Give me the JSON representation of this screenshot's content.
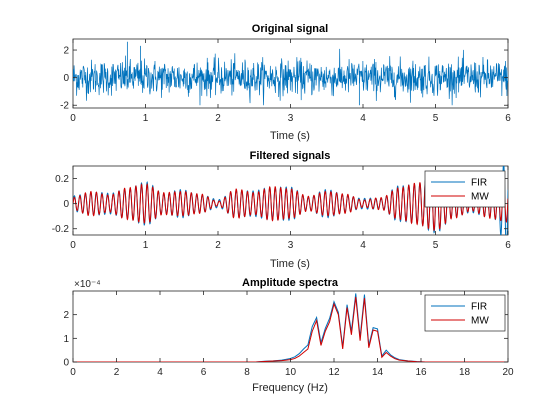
{
  "chart_data": [
    {
      "type": "line",
      "title": "Original signal",
      "xlabel": "Time (s)",
      "ylabel": "",
      "xlim": [
        0,
        6
      ],
      "ylim": [
        -2.2,
        2.8
      ],
      "xticks": [
        "0",
        "1",
        "2",
        "3",
        "4",
        "5",
        "6"
      ],
      "yticks": [
        "-2",
        "0",
        "2"
      ],
      "grid": false,
      "legend": null,
      "series": [
        {
          "color": "#0072BD",
          "description_values": "broadband noise, approx. zero mean, amplitude mostly within ±1.5, peaks near ±2.5",
          "x_range": [
            0,
            6
          ],
          "amplitude_typical": 0.85,
          "peak_max": 2.6,
          "peak_min": -2.0
        }
      ]
    },
    {
      "type": "line",
      "title": "Filtered signals",
      "xlabel": "Time (s)",
      "ylabel": "",
      "xlim": [
        0,
        6
      ],
      "ylim": [
        -0.25,
        0.3
      ],
      "xticks": [
        "0",
        "1",
        "2",
        "3",
        "4",
        "5",
        "6"
      ],
      "yticks": [
        "-0.2",
        "0",
        "0.2"
      ],
      "grid": false,
      "legend": "top-right",
      "center_freq_hz": 13,
      "envelope_points": {
        "t": [
          0,
          0.25,
          0.5,
          0.75,
          1.0,
          1.25,
          1.5,
          1.75,
          2.0,
          2.25,
          2.5,
          2.75,
          3.0,
          3.25,
          3.5,
          3.75,
          4.0,
          4.25,
          4.5,
          4.75,
          5.0,
          5.25,
          5.5,
          5.75,
          6.0
        ],
        "amp": [
          0.05,
          0.1,
          0.07,
          0.13,
          0.16,
          0.09,
          0.1,
          0.08,
          0.02,
          0.12,
          0.09,
          0.14,
          0.12,
          0.06,
          0.1,
          0.08,
          0.03,
          0.05,
          0.13,
          0.17,
          0.22,
          0.12,
          0.06,
          0.12,
          0.15
        ]
      },
      "series": [
        {
          "name": "FIR",
          "color": "#0072BD"
        },
        {
          "name": "MW",
          "color": "#D00000"
        }
      ]
    },
    {
      "type": "line",
      "title": "Amplitude spectra",
      "xlabel": "Frequency (Hz)",
      "ylabel": "",
      "exponent_label": "×10⁻⁴",
      "xlim": [
        0,
        20
      ],
      "ylim": [
        0,
        3
      ],
      "xticks": [
        "0",
        "2",
        "4",
        "6",
        "8",
        "10",
        "12",
        "14",
        "16",
        "18",
        "20"
      ],
      "yticks": [
        "0",
        "1",
        "2"
      ],
      "grid": false,
      "legend": "top-right",
      "series": [
        {
          "name": "FIR",
          "color": "#0072BD",
          "x": [
            0,
            8.4,
            8.8,
            9.2,
            9.6,
            10.0,
            10.2,
            10.4,
            10.6,
            10.8,
            11.0,
            11.2,
            11.4,
            11.6,
            11.8,
            12.0,
            12.2,
            12.4,
            12.6,
            12.8,
            13.0,
            13.2,
            13.4,
            13.6,
            13.8,
            14.0,
            14.2,
            14.4,
            14.6,
            14.8,
            15.0,
            15.4,
            15.8,
            16.2,
            20
          ],
          "y": [
            0,
            0,
            0.03,
            0.05,
            0.08,
            0.15,
            0.22,
            0.35,
            0.55,
            0.72,
            1.5,
            1.88,
            0.82,
            1.42,
            1.85,
            2.55,
            2.1,
            0.65,
            2.42,
            1.3,
            2.9,
            1.05,
            2.85,
            0.7,
            1.45,
            1.4,
            0.25,
            0.5,
            0.3,
            0.18,
            0.1,
            0.05,
            0.02,
            0,
            0
          ]
        },
        {
          "name": "MW",
          "color": "#D00000",
          "x": [
            0,
            8.4,
            8.8,
            9.2,
            9.6,
            10.0,
            10.2,
            10.4,
            10.6,
            10.8,
            11.0,
            11.2,
            11.4,
            11.6,
            11.8,
            12.0,
            12.2,
            12.4,
            12.6,
            12.8,
            13.0,
            13.2,
            13.4,
            13.6,
            13.8,
            14.0,
            14.2,
            14.4,
            14.6,
            14.8,
            15.0,
            15.4,
            15.8,
            16.2,
            20
          ],
          "y": [
            0,
            0,
            0.02,
            0.04,
            0.06,
            0.1,
            0.15,
            0.25,
            0.4,
            0.55,
            1.3,
            1.75,
            0.7,
            1.3,
            1.7,
            2.45,
            2.0,
            0.55,
            2.3,
            1.15,
            2.75,
            0.9,
            2.7,
            0.6,
            1.35,
            1.3,
            0.2,
            0.4,
            0.25,
            0.14,
            0.08,
            0.04,
            0.01,
            0,
            0
          ]
        }
      ]
    }
  ]
}
